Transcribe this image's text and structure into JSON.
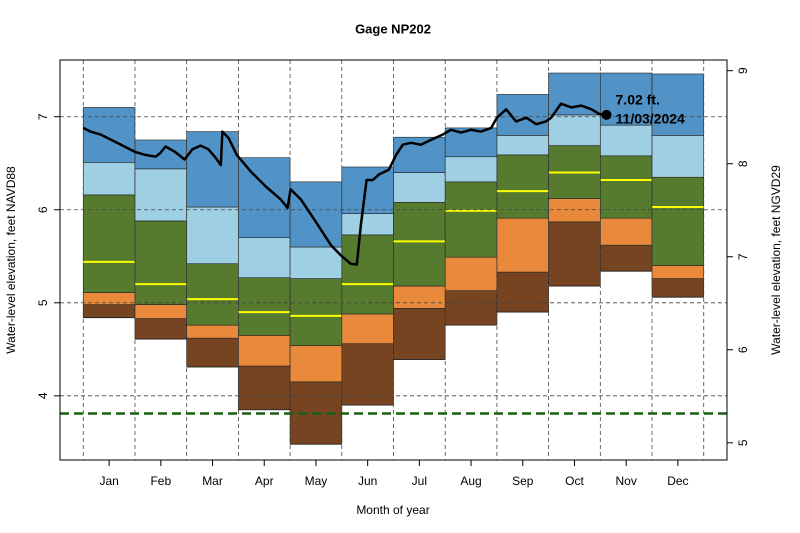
{
  "chart_data": {
    "type": "percentile-bands",
    "title": "Gage NP202",
    "x_label": "Month of year",
    "y_label": "Water-level elevation, feet NAVD88",
    "y2_label": "Water-level elevation, feet NGVD29",
    "categories": [
      "Jan",
      "Feb",
      "Mar",
      "Apr",
      "May",
      "Jun",
      "Jul",
      "Aug",
      "Sep",
      "Oct",
      "Nov",
      "Dec"
    ],
    "xlim": [
      -0.45,
      12.45
    ],
    "ylim": [
      3.31,
      7.61
    ],
    "yticks": [
      4,
      5,
      6,
      7
    ],
    "y2lim": [
      4.815,
      9.115
    ],
    "y2ticks": [
      5,
      6,
      7,
      8,
      9
    ],
    "grid": true,
    "floor": [
      4.84,
      4.61,
      4.31,
      3.85,
      3.48,
      3.9,
      4.39,
      4.76,
      4.9,
      5.18,
      5.34,
      5.06
    ],
    "series": [
      {
        "color": "#774421",
        "values": [
          0.14,
          0.22,
          0.31,
          0.47,
          0.67,
          0.66,
          0.55,
          0.37,
          0.43,
          0.69,
          0.28,
          0.2
        ]
      },
      {
        "color": "#e8893b",
        "values": [
          0.13,
          0.15,
          0.14,
          0.33,
          0.39,
          0.32,
          0.24,
          0.36,
          0.58,
          0.25,
          0.29,
          0.14
        ]
      },
      {
        "color": "#567b2f",
        "values": [
          1.05,
          0.9,
          0.66,
          0.62,
          0.72,
          0.85,
          0.9,
          0.81,
          0.68,
          0.57,
          0.67,
          0.95
        ]
      },
      {
        "color": "#9ecfe2",
        "values": [
          0.35,
          0.56,
          0.61,
          0.43,
          0.34,
          0.23,
          0.32,
          0.27,
          0.21,
          0.33,
          0.33,
          0.45
        ]
      },
      {
        "color": "#5193c6",
        "values": [
          0.59,
          0.31,
          0.81,
          0.86,
          0.7,
          0.5,
          0.38,
          0.31,
          0.44,
          0.45,
          0.56,
          0.66
        ]
      }
    ],
    "median": {
      "color": "#ffff00",
      "values": [
        5.44,
        5.2,
        5.04,
        4.9,
        4.86,
        5.2,
        5.66,
        5.99,
        6.2,
        6.4,
        6.32,
        6.03
      ]
    },
    "reference_line": {
      "color": "#1a5e12",
      "value": 3.81
    },
    "line": {
      "color": "#000000",
      "x": [
        0,
        0.14,
        0.33,
        0.62,
        1.01,
        1.2,
        1.4,
        1.49,
        1.59,
        1.78,
        1.96,
        2.11,
        2.27,
        2.42,
        2.56,
        2.66,
        2.69,
        2.81,
        2.97,
        3.24,
        3.53,
        3.82,
        3.95,
        4.01,
        4.21,
        4.5,
        4.79,
        4.98,
        5.17,
        5.29,
        5.37,
        5.48,
        5.6,
        5.72,
        5.91,
        6.05,
        6.18,
        6.34,
        6.53,
        6.72,
        6.96,
        7.11,
        7.31,
        7.5,
        7.69,
        7.89,
        8.0,
        8.18,
        8.37,
        8.57,
        8.76,
        8.95,
        9.05,
        9.24,
        9.44,
        9.63,
        9.83,
        9.98,
        10.12
      ],
      "y": [
        6.88,
        6.84,
        6.81,
        6.73,
        6.62,
        6.59,
        6.57,
        6.61,
        6.68,
        6.62,
        6.54,
        6.65,
        6.69,
        6.65,
        6.56,
        6.48,
        6.84,
        6.77,
        6.59,
        6.41,
        6.25,
        6.11,
        6.02,
        6.22,
        6.11,
        5.87,
        5.62,
        5.51,
        5.42,
        5.41,
        5.84,
        6.32,
        6.32,
        6.38,
        6.43,
        6.59,
        6.7,
        6.72,
        6.7,
        6.75,
        6.81,
        6.86,
        6.83,
        6.86,
        6.84,
        6.88,
        6.99,
        7.08,
        6.95,
        6.99,
        6.92,
        6.95,
        6.99,
        7.14,
        7.1,
        7.12,
        7.08,
        7.03,
        7.02
      ],
      "last_point_labels": [
        "7.02 ft.",
        "11/03/2024"
      ]
    }
  }
}
